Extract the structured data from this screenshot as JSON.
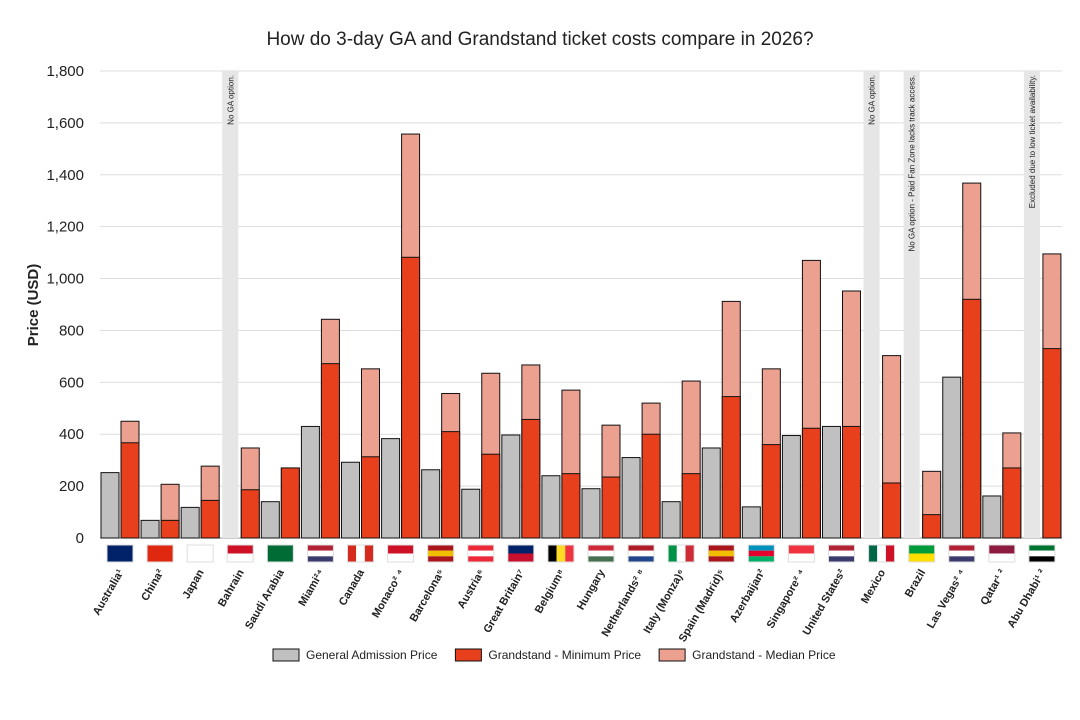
{
  "chart_data": {
    "type": "bar",
    "title": "How do 3-day GA and Grandstand ticket costs compare in 2026?",
    "y_label": "Price (USD)",
    "categories": [
      "Australia¹",
      "China²",
      "Japan",
      "Bahrain",
      "Saudi Arabia",
      "Miami²⁴",
      "Canada",
      "Monaco² ⁴",
      "Barcelona⁵",
      "Austria⁶",
      "Great Britain⁷",
      "Belgium⁸",
      "Hungary",
      "Netherlands² ⁸",
      "Italy (Monza)⁶",
      "Spain (Madrid)⁵",
      "Azerbaijan²",
      "Singapore² ⁴",
      "United States²",
      "Mexico",
      "Brazil",
      "Las Vegas² ⁴",
      "Qatar¹ ²",
      "Abu Dhabi¹ ²"
    ],
    "series": [
      {
        "name": "General Admission Price",
        "color": "#c0c0c0",
        "values": [
          252,
          68,
          118,
          null,
          140,
          430,
          292,
          383,
          263,
          188,
          397,
          240,
          190,
          310,
          140,
          347,
          120,
          395,
          430,
          null,
          null,
          620,
          162,
          null
        ]
      },
      {
        "name": "Grandstand - Minimum Price",
        "color": "#e8401c",
        "values": [
          367,
          68,
          145,
          186,
          270,
          672,
          313,
          1082,
          410,
          323,
          457,
          248,
          235,
          400,
          248,
          545,
          360,
          423,
          430,
          212,
          90,
          920,
          270,
          730
        ]
      },
      {
        "name": "Grandstand - Median Price",
        "color": "#eba090",
        "values": [
          450,
          207,
          277,
          347,
          270,
          843,
          652,
          1557,
          557,
          635,
          667,
          570,
          435,
          520,
          605,
          912,
          652,
          1070,
          952,
          703,
          257,
          1368,
          405,
          1095
        ]
      }
    ],
    "notes": [
      null,
      null,
      null,
      "No GA option.",
      null,
      null,
      null,
      null,
      null,
      null,
      null,
      null,
      null,
      null,
      null,
      null,
      null,
      null,
      null,
      "No GA option.",
      "No GA option - Paid Fan Zone lacks track access.",
      null,
      null,
      "Excluded due to low ticket availability."
    ],
    "ylim": [
      0,
      1800
    ],
    "yticks": [
      0,
      {
        "value": 200,
        "label": "200"
      },
      {
        "value": 400,
        "label": "400"
      },
      {
        "value": 600,
        "label": "600"
      },
      {
        "value": 800,
        "label": "800"
      },
      {
        "value": 1000,
        "label": "1,000"
      },
      {
        "value": 1200,
        "label": "1,200"
      },
      {
        "value": 1400,
        "label": "1,400"
      },
      {
        "value": 1600,
        "label": "1,600"
      },
      {
        "value": 1800,
        "label": "1,800"
      }
    ],
    "grid": true
  }
}
